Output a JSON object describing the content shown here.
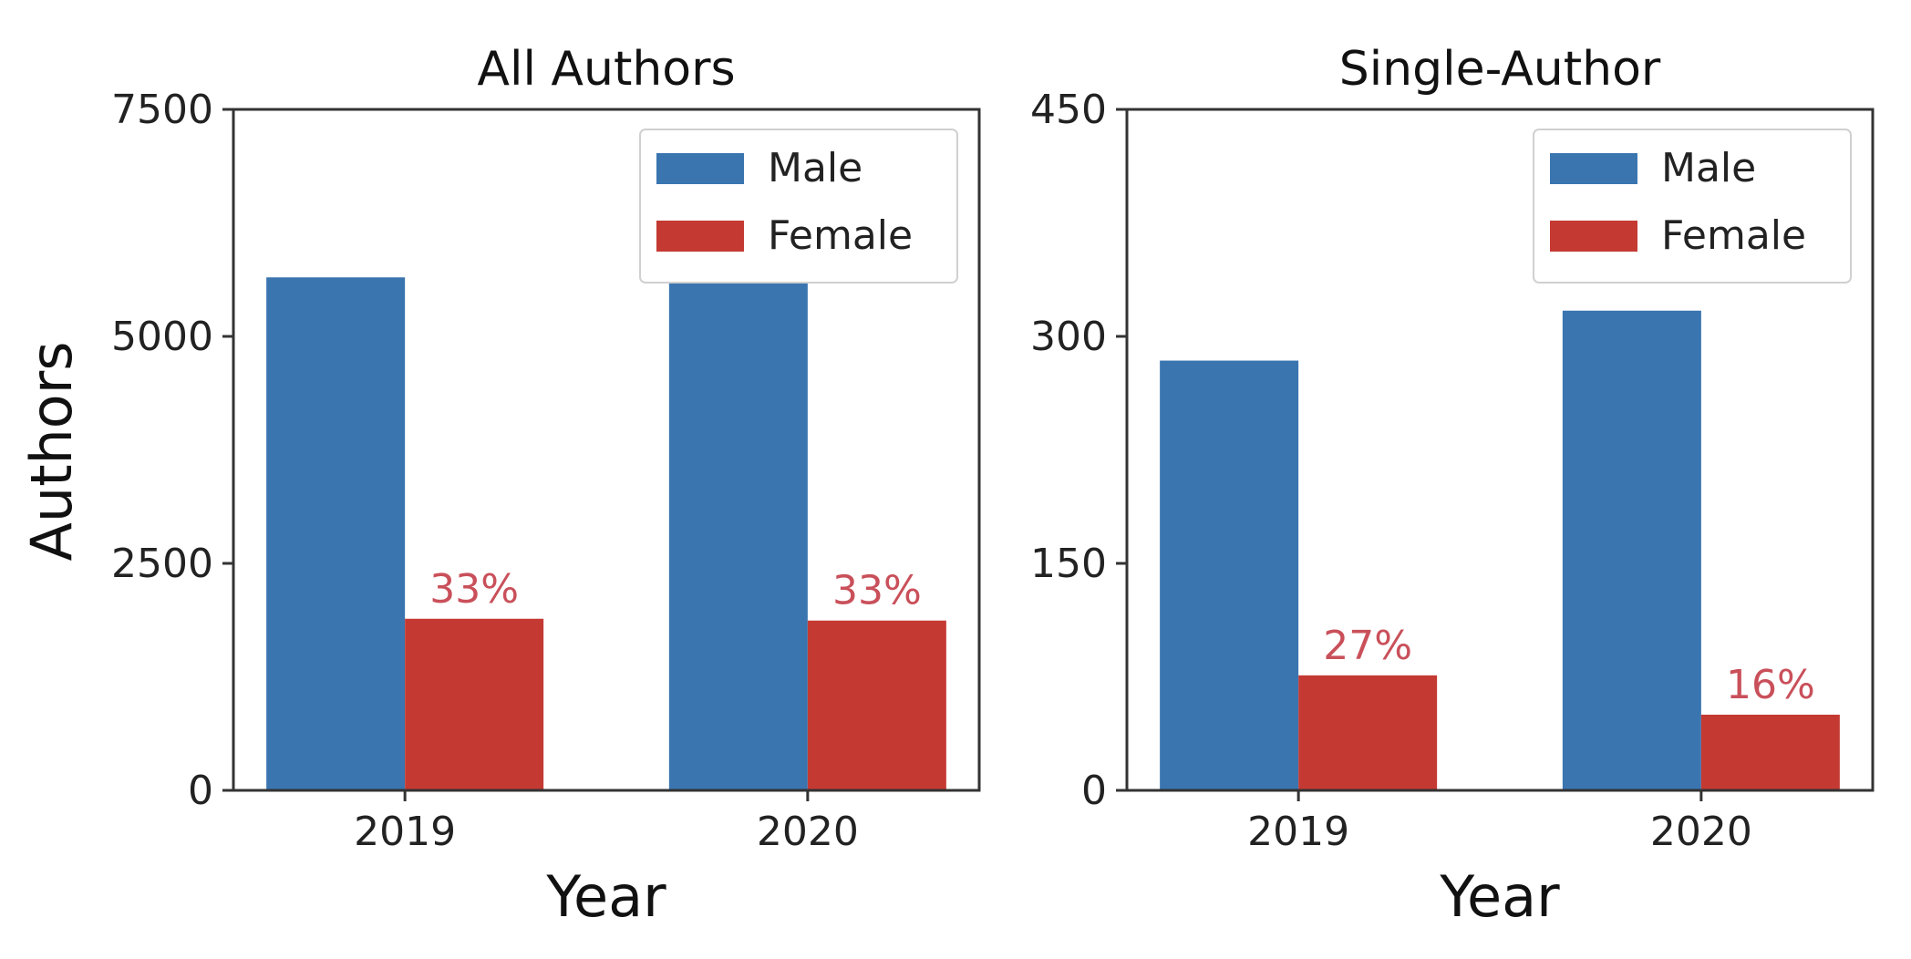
{
  "colors": {
    "male": "#3a75b0",
    "female": "#c43a33",
    "pct_label": "#c9505a"
  },
  "figure": {
    "ylabel": "Authors"
  },
  "legend": {
    "placement": "upper right",
    "labels": [
      "Male",
      "Female"
    ]
  },
  "chart_data": [
    {
      "type": "bar",
      "title": "All Authors",
      "xlabel": "Year",
      "ylabel": "Authors",
      "categories": [
        "2019",
        "2020"
      ],
      "ylim": [
        0,
        7500
      ],
      "yticks": [
        "0",
        "2500",
        "5000",
        "7500"
      ],
      "series": [
        {
          "name": "Male",
          "values": [
            5650,
            5720
          ]
        },
        {
          "name": "Female",
          "values": [
            1890,
            1870
          ]
        }
      ],
      "annotations": [
        "33%",
        "33%"
      ]
    },
    {
      "type": "bar",
      "title": "Single-Author",
      "xlabel": "Year",
      "ylabel": "",
      "categories": [
        "2019",
        "2020"
      ],
      "ylim": [
        0,
        450
      ],
      "yticks": [
        "0",
        "150",
        "300",
        "450"
      ],
      "series": [
        {
          "name": "Male",
          "values": [
            284,
            317
          ]
        },
        {
          "name": "Female",
          "values": [
            76,
            50
          ]
        }
      ],
      "annotations": [
        "27%",
        "16%"
      ]
    }
  ]
}
